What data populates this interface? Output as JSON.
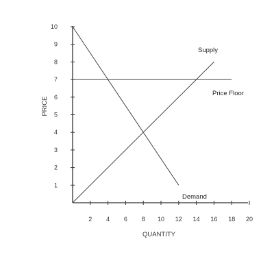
{
  "chart_data": {
    "type": "line",
    "xlabel": "QUANTITY",
    "ylabel": "PRICE",
    "xlim": [
      0,
      20
    ],
    "ylim": [
      0,
      10
    ],
    "x_ticks": [
      2,
      4,
      6,
      8,
      10,
      12,
      14,
      16,
      18,
      20
    ],
    "y_ticks": [
      1,
      2,
      3,
      4,
      5,
      6,
      7,
      8,
      9,
      10
    ],
    "grid": false,
    "series": [
      {
        "name": "Supply",
        "x": [
          0,
          16
        ],
        "y": [
          0,
          8
        ]
      },
      {
        "name": "Demand",
        "x": [
          0,
          12
        ],
        "y": [
          10,
          1
        ]
      },
      {
        "name": "Price Floor",
        "x": [
          0,
          18
        ],
        "y": [
          7,
          7
        ]
      }
    ],
    "colors": {
      "axis": "#333333",
      "curve": "#444444",
      "text": "#222222"
    }
  }
}
